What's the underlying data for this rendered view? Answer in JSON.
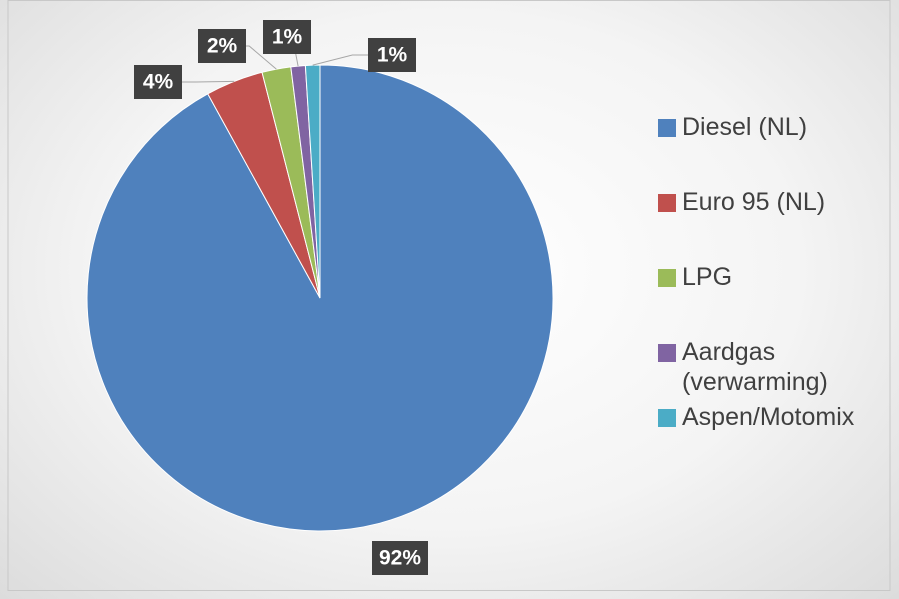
{
  "chart_data": {
    "type": "pie",
    "categories": [
      "Diesel (NL)",
      "Euro 95 (NL)",
      "LPG",
      "Aardgas (verwarming)",
      "Aspen/Motomix"
    ],
    "values": [
      92,
      4,
      2,
      1,
      1
    ],
    "value_labels": [
      "92%",
      "4%",
      "2%",
      "1%",
      "1%"
    ],
    "colors": [
      "#4f81bd",
      "#c0504d",
      "#9bbb59",
      "#8064a2",
      "#4bacc6"
    ],
    "legend": "right"
  }
}
